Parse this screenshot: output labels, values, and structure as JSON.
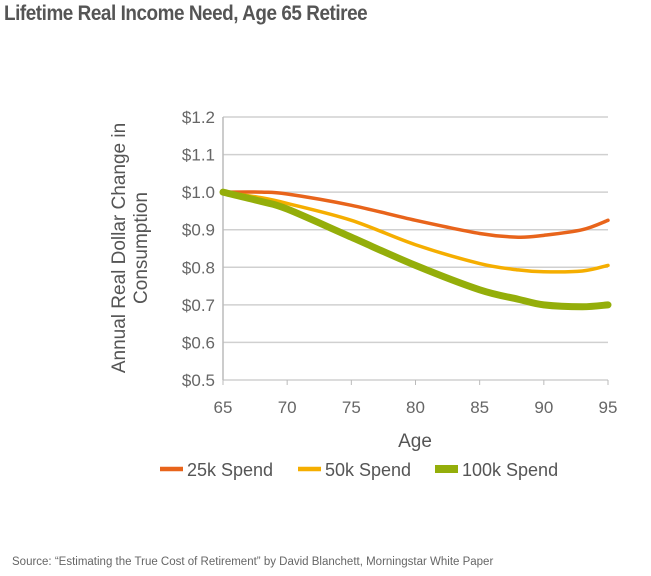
{
  "title": "Lifetime Real Income Need, Age 65 Retiree",
  "source": "Source: “Estimating the True Cost of Retirement” by David Blanchett, Morningstar White Paper",
  "chart_data": {
    "type": "line",
    "title": "Lifetime Real Income Need, Age 65 Retiree",
    "xlabel": "Age",
    "ylabel": "Annual Real Dollar Change in Consumption",
    "xlim": [
      65,
      95
    ],
    "ylim": [
      0.5,
      1.2
    ],
    "xticks": [
      "65",
      "70",
      "75",
      "80",
      "85",
      "90",
      "95"
    ],
    "yticks": [
      "$0.5",
      "$0.6",
      "$0.7",
      "$0.8",
      "$0.9",
      "$1.0",
      "$1.1",
      "$1.2"
    ],
    "grid": true,
    "legend": "bottom",
    "x": [
      65,
      68,
      70,
      75,
      80,
      85,
      88,
      90,
      93,
      95
    ],
    "series": [
      {
        "name": "25k Spend",
        "color": "#E8641B",
        "values": [
          1.0,
          1.0,
          0.995,
          0.965,
          0.925,
          0.89,
          0.88,
          0.885,
          0.9,
          0.925
        ]
      },
      {
        "name": "50k Spend",
        "color": "#F5AE00",
        "values": [
          1.0,
          0.985,
          0.97,
          0.925,
          0.86,
          0.81,
          0.793,
          0.788,
          0.79,
          0.805
        ]
      },
      {
        "name": "100k Spend",
        "color": "#94AE0A",
        "values": [
          1.0,
          0.975,
          0.955,
          0.88,
          0.805,
          0.74,
          0.715,
          0.7,
          0.695,
          0.7
        ]
      }
    ]
  }
}
